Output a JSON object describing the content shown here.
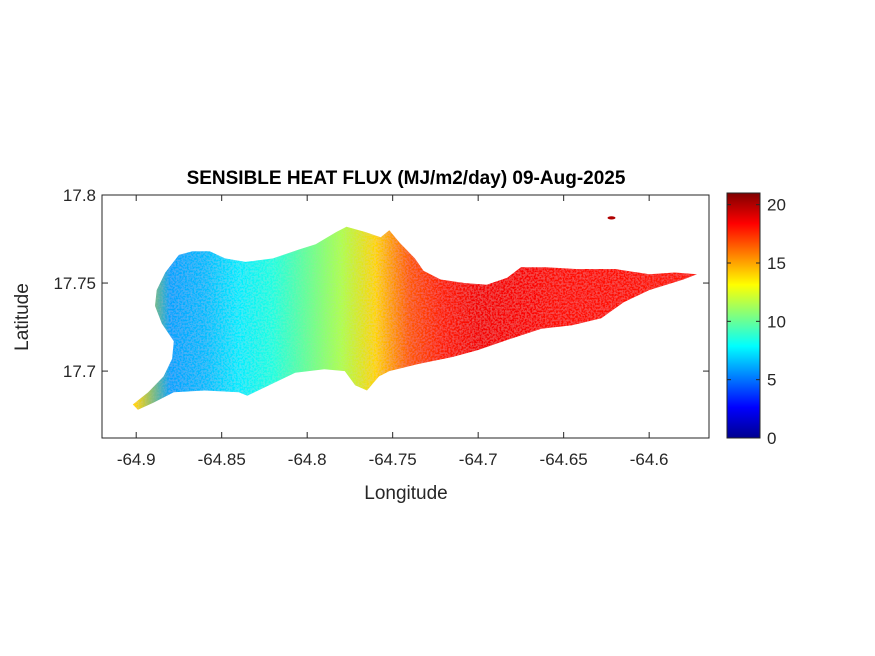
{
  "chart_data": {
    "type": "heatmap",
    "title": "SENSIBLE HEAT FLUX (MJ/m2/day) 09-Aug-2025",
    "xlabel": "Longitude",
    "ylabel": "Latitude",
    "xlim": [
      -64.92,
      -64.565
    ],
    "ylim": [
      17.662,
      17.8
    ],
    "x_ticks": [
      -64.9,
      -64.85,
      -64.8,
      -64.75,
      -64.7,
      -64.65,
      -64.6
    ],
    "x_tick_labels": [
      "-64.9",
      "-64.85",
      "-64.8",
      "-64.75",
      "-64.7",
      "-64.65",
      "-64.6"
    ],
    "y_ticks": [
      17.7,
      17.75,
      17.8
    ],
    "y_tick_labels": [
      "17.7",
      "17.75",
      "17.8"
    ],
    "colorbar": {
      "colormap": "jet",
      "clim": [
        0,
        21
      ],
      "ticks": [
        0,
        5,
        10,
        15,
        20
      ],
      "tick_labels": [
        "0",
        "5",
        "10",
        "15",
        "20"
      ]
    },
    "grid": false,
    "value_by_longitude": [
      {
        "x": -64.9,
        "v": 14
      },
      {
        "x": -64.88,
        "v": 6
      },
      {
        "x": -64.86,
        "v": 6.5
      },
      {
        "x": -64.84,
        "v": 7.5
      },
      {
        "x": -64.82,
        "v": 8.5
      },
      {
        "x": -64.8,
        "v": 10
      },
      {
        "x": -64.78,
        "v": 11.5
      },
      {
        "x": -64.76,
        "v": 14
      },
      {
        "x": -64.74,
        "v": 16.5
      },
      {
        "x": -64.72,
        "v": 17.8
      },
      {
        "x": -64.7,
        "v": 18.6
      },
      {
        "x": -64.65,
        "v": 18.2
      },
      {
        "x": -64.6,
        "v": 18
      },
      {
        "x": -64.57,
        "v": 18
      }
    ],
    "island_outline": [
      [
        -64.902,
        17.681
      ],
      [
        -64.893,
        17.688
      ],
      [
        -64.884,
        17.697
      ],
      [
        -64.879,
        17.707
      ],
      [
        -64.878,
        17.717
      ],
      [
        -64.885,
        17.727
      ],
      [
        -64.889,
        17.737
      ],
      [
        -64.888,
        17.746
      ],
      [
        -64.883,
        17.756
      ],
      [
        -64.875,
        17.766
      ],
      [
        -64.867,
        17.768
      ],
      [
        -64.857,
        17.768
      ],
      [
        -64.848,
        17.764
      ],
      [
        -64.836,
        17.762
      ],
      [
        -64.82,
        17.764
      ],
      [
        -64.805,
        17.769
      ],
      [
        -64.795,
        17.772
      ],
      [
        -64.783,
        17.779
      ],
      [
        -64.777,
        17.782
      ],
      [
        -64.766,
        17.779
      ],
      [
        -64.757,
        17.776
      ],
      [
        -64.752,
        17.78
      ],
      [
        -64.746,
        17.773
      ],
      [
        -64.737,
        17.764
      ],
      [
        -64.732,
        17.757
      ],
      [
        -64.722,
        17.752
      ],
      [
        -64.708,
        17.75
      ],
      [
        -64.695,
        17.749
      ],
      [
        -64.683,
        17.753
      ],
      [
        -64.675,
        17.759
      ],
      [
        -64.66,
        17.759
      ],
      [
        -64.643,
        17.758
      ],
      [
        -64.62,
        17.758
      ],
      [
        -64.6,
        17.755
      ],
      [
        -64.585,
        17.756
      ],
      [
        -64.572,
        17.755
      ],
      [
        -64.58,
        17.752
      ],
      [
        -64.6,
        17.746
      ],
      [
        -64.615,
        17.739
      ],
      [
        -64.628,
        17.73
      ],
      [
        -64.645,
        17.726
      ],
      [
        -64.663,
        17.724
      ],
      [
        -64.682,
        17.718
      ],
      [
        -64.7,
        17.712
      ],
      [
        -64.715,
        17.708
      ],
      [
        -64.735,
        17.704
      ],
      [
        -64.752,
        17.7
      ],
      [
        -64.758,
        17.697
      ],
      [
        -64.765,
        17.689
      ],
      [
        -64.772,
        17.692
      ],
      [
        -64.778,
        17.7
      ],
      [
        -64.79,
        17.701
      ],
      [
        -64.807,
        17.699
      ],
      [
        -64.82,
        17.693
      ],
      [
        -64.835,
        17.686
      ],
      [
        -64.84,
        17.688
      ],
      [
        -64.86,
        17.689
      ],
      [
        -64.878,
        17.688
      ],
      [
        -64.89,
        17.682
      ],
      [
        -64.899,
        17.678
      ]
    ],
    "islet": {
      "x": -64.622,
      "y": 17.787,
      "v": 20
    }
  }
}
